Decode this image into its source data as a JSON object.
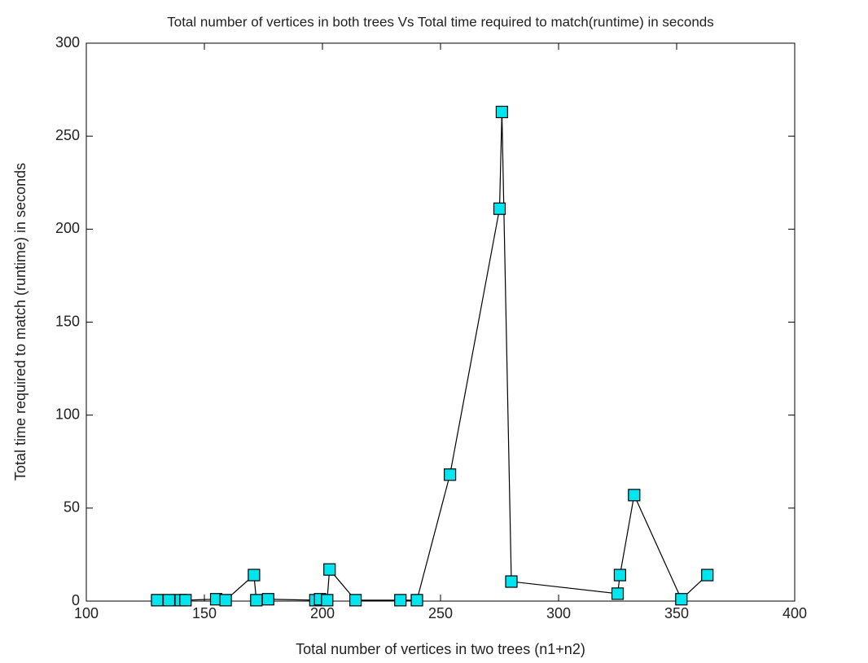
{
  "chart_data": {
    "type": "line",
    "title": "Total number of vertices in both trees Vs Total time required to match(runtime) in seconds",
    "xlabel": "Total number of vertices in two trees (n1+n2)",
    "ylabel": "Total time required to match (runtime) in seconds",
    "xlim": [
      100,
      400
    ],
    "xticks": [
      100,
      150,
      200,
      250,
      300,
      350,
      400
    ],
    "ylim": [
      0,
      300
    ],
    "yticks": [
      0,
      50,
      100,
      150,
      200,
      250,
      300
    ],
    "series": [
      {
        "line_color": "#000000",
        "marker_color": "#00e5ee",
        "x": [
          130,
          135,
          140,
          142,
          155,
          159,
          171,
          172,
          177,
          197,
          199,
          202,
          203,
          214,
          233,
          240,
          254,
          275,
          276,
          280,
          325,
          326,
          332,
          352,
          363
        ],
        "values": [
          0.5,
          0.5,
          0.5,
          0.5,
          1,
          0.5,
          14,
          0.5,
          1,
          0.5,
          1,
          0.5,
          17,
          0.5,
          0.5,
          0.5,
          68,
          211,
          263,
          10.5,
          4,
          14,
          57,
          1,
          14
        ]
      }
    ]
  }
}
